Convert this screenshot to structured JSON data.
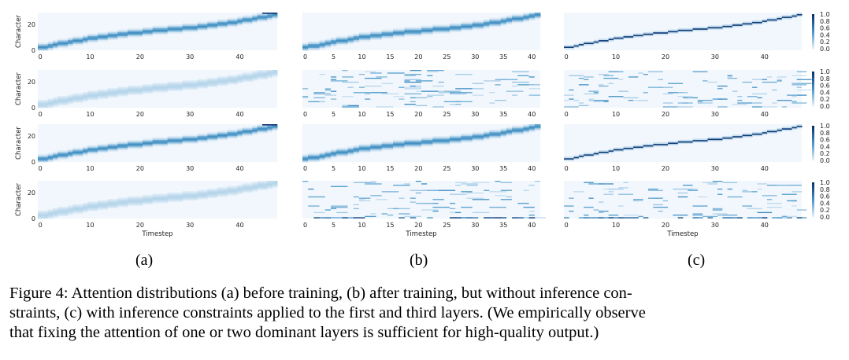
{
  "figure": {
    "caption_lines": [
      "Figure 4:  Attention distributions (a) before training, (b) after training, but without inference con-",
      "straints, (c) with inference constraints applied to the first and third layers. (We empirically observe",
      "that fixing the attention of one or two dominant layers is sufficient for high-quality output.)"
    ],
    "subfigure_labels": [
      "(a)",
      "(b)",
      "(c)"
    ]
  },
  "chart_data": [
    {
      "type": "heatmap",
      "panel": "a",
      "row": 1,
      "ylabel": "Character",
      "xlabel": "",
      "x_ticks": [
        0,
        10,
        20,
        30,
        40
      ],
      "y_ticks": [
        0,
        20
      ],
      "xlim": [
        0,
        48
      ],
      "ylim": [
        0,
        29
      ],
      "pattern": "diagonal-sharp"
    },
    {
      "type": "heatmap",
      "panel": "a",
      "row": 2,
      "ylabel": "Character",
      "xlabel": "",
      "x_ticks": [
        0,
        10,
        20,
        30,
        40
      ],
      "y_ticks": [
        0,
        20
      ],
      "xlim": [
        0,
        48
      ],
      "ylim": [
        0,
        29
      ],
      "pattern": "diagonal-faint"
    },
    {
      "type": "heatmap",
      "panel": "a",
      "row": 3,
      "ylabel": "Character",
      "xlabel": "",
      "x_ticks": [
        0,
        10,
        20,
        30,
        40
      ],
      "y_ticks": [
        0,
        20
      ],
      "xlim": [
        0,
        48
      ],
      "ylim": [
        0,
        29
      ],
      "pattern": "diagonal-sharp"
    },
    {
      "type": "heatmap",
      "panel": "a",
      "row": 4,
      "ylabel": "Character",
      "xlabel": "Timestep",
      "x_ticks": [
        0,
        10,
        20,
        30,
        40
      ],
      "y_ticks": [
        0,
        20
      ],
      "xlim": [
        0,
        48
      ],
      "ylim": [
        0,
        29
      ],
      "pattern": "diagonal-faint"
    },
    {
      "type": "heatmap",
      "panel": "b",
      "row": 1,
      "xlabel": "",
      "x_ticks": [
        0,
        5,
        10,
        15,
        20,
        25,
        30,
        35,
        40
      ],
      "xlim": [
        0,
        42
      ],
      "ylim": [
        0,
        29
      ],
      "pattern": "diagonal-sharp"
    },
    {
      "type": "heatmap",
      "panel": "b",
      "row": 2,
      "xlabel": "",
      "x_ticks": [
        0,
        5,
        10,
        15,
        20,
        25,
        30,
        35,
        40
      ],
      "xlim": [
        0,
        42
      ],
      "ylim": [
        0,
        29
      ],
      "pattern": "scattered"
    },
    {
      "type": "heatmap",
      "panel": "b",
      "row": 3,
      "xlabel": "",
      "x_ticks": [
        0,
        5,
        10,
        15,
        20,
        25,
        30,
        35,
        40
      ],
      "xlim": [
        0,
        42
      ],
      "ylim": [
        0,
        29
      ],
      "pattern": "diagonal-sharp"
    },
    {
      "type": "heatmap",
      "panel": "b",
      "row": 4,
      "xlabel": "Timestep",
      "x_ticks": [
        0,
        5,
        10,
        15,
        20,
        25,
        30,
        35,
        40
      ],
      "xlim": [
        0,
        42
      ],
      "ylim": [
        0,
        29
      ],
      "pattern": "scattered-bottom"
    },
    {
      "type": "heatmap",
      "panel": "c",
      "row": 1,
      "xlabel": "",
      "x_ticks": [
        0,
        10,
        20,
        30,
        40
      ],
      "xlim": [
        0,
        48
      ],
      "ylim": [
        0,
        29
      ],
      "pattern": "diagonal-hard",
      "colorbar_ticks": [
        "1.0",
        "0.8",
        "0.6",
        "0.4",
        "0.2",
        "0.0"
      ]
    },
    {
      "type": "heatmap",
      "panel": "c",
      "row": 2,
      "xlabel": "",
      "x_ticks": [
        0,
        10,
        20,
        30,
        40
      ],
      "xlim": [
        0,
        48
      ],
      "ylim": [
        0,
        29
      ],
      "pattern": "scattered",
      "colorbar_ticks": [
        "1.0",
        "0.8",
        "0.6",
        "0.4",
        "0.2",
        "0.0"
      ]
    },
    {
      "type": "heatmap",
      "panel": "c",
      "row": 3,
      "xlabel": "",
      "x_ticks": [
        0,
        10,
        20,
        30,
        40
      ],
      "xlim": [
        0,
        48
      ],
      "ylim": [
        0,
        29
      ],
      "pattern": "diagonal-hard",
      "colorbar_ticks": [
        "1.0",
        "0.8",
        "0.6",
        "0.4",
        "0.2",
        "0.0"
      ]
    },
    {
      "type": "heatmap",
      "panel": "c",
      "row": 4,
      "xlabel": "Timestep",
      "x_ticks": [
        0,
        10,
        20,
        30,
        40
      ],
      "xlim": [
        0,
        48
      ],
      "ylim": [
        0,
        29
      ],
      "pattern": "scattered-bottom",
      "colorbar_ticks": [
        "1.0",
        "0.8",
        "0.6",
        "0.4",
        "0.2",
        "0.0"
      ]
    }
  ],
  "colors": {
    "low": "#f2f7fd",
    "high": "#08306b",
    "mid": "#4a98c9"
  }
}
